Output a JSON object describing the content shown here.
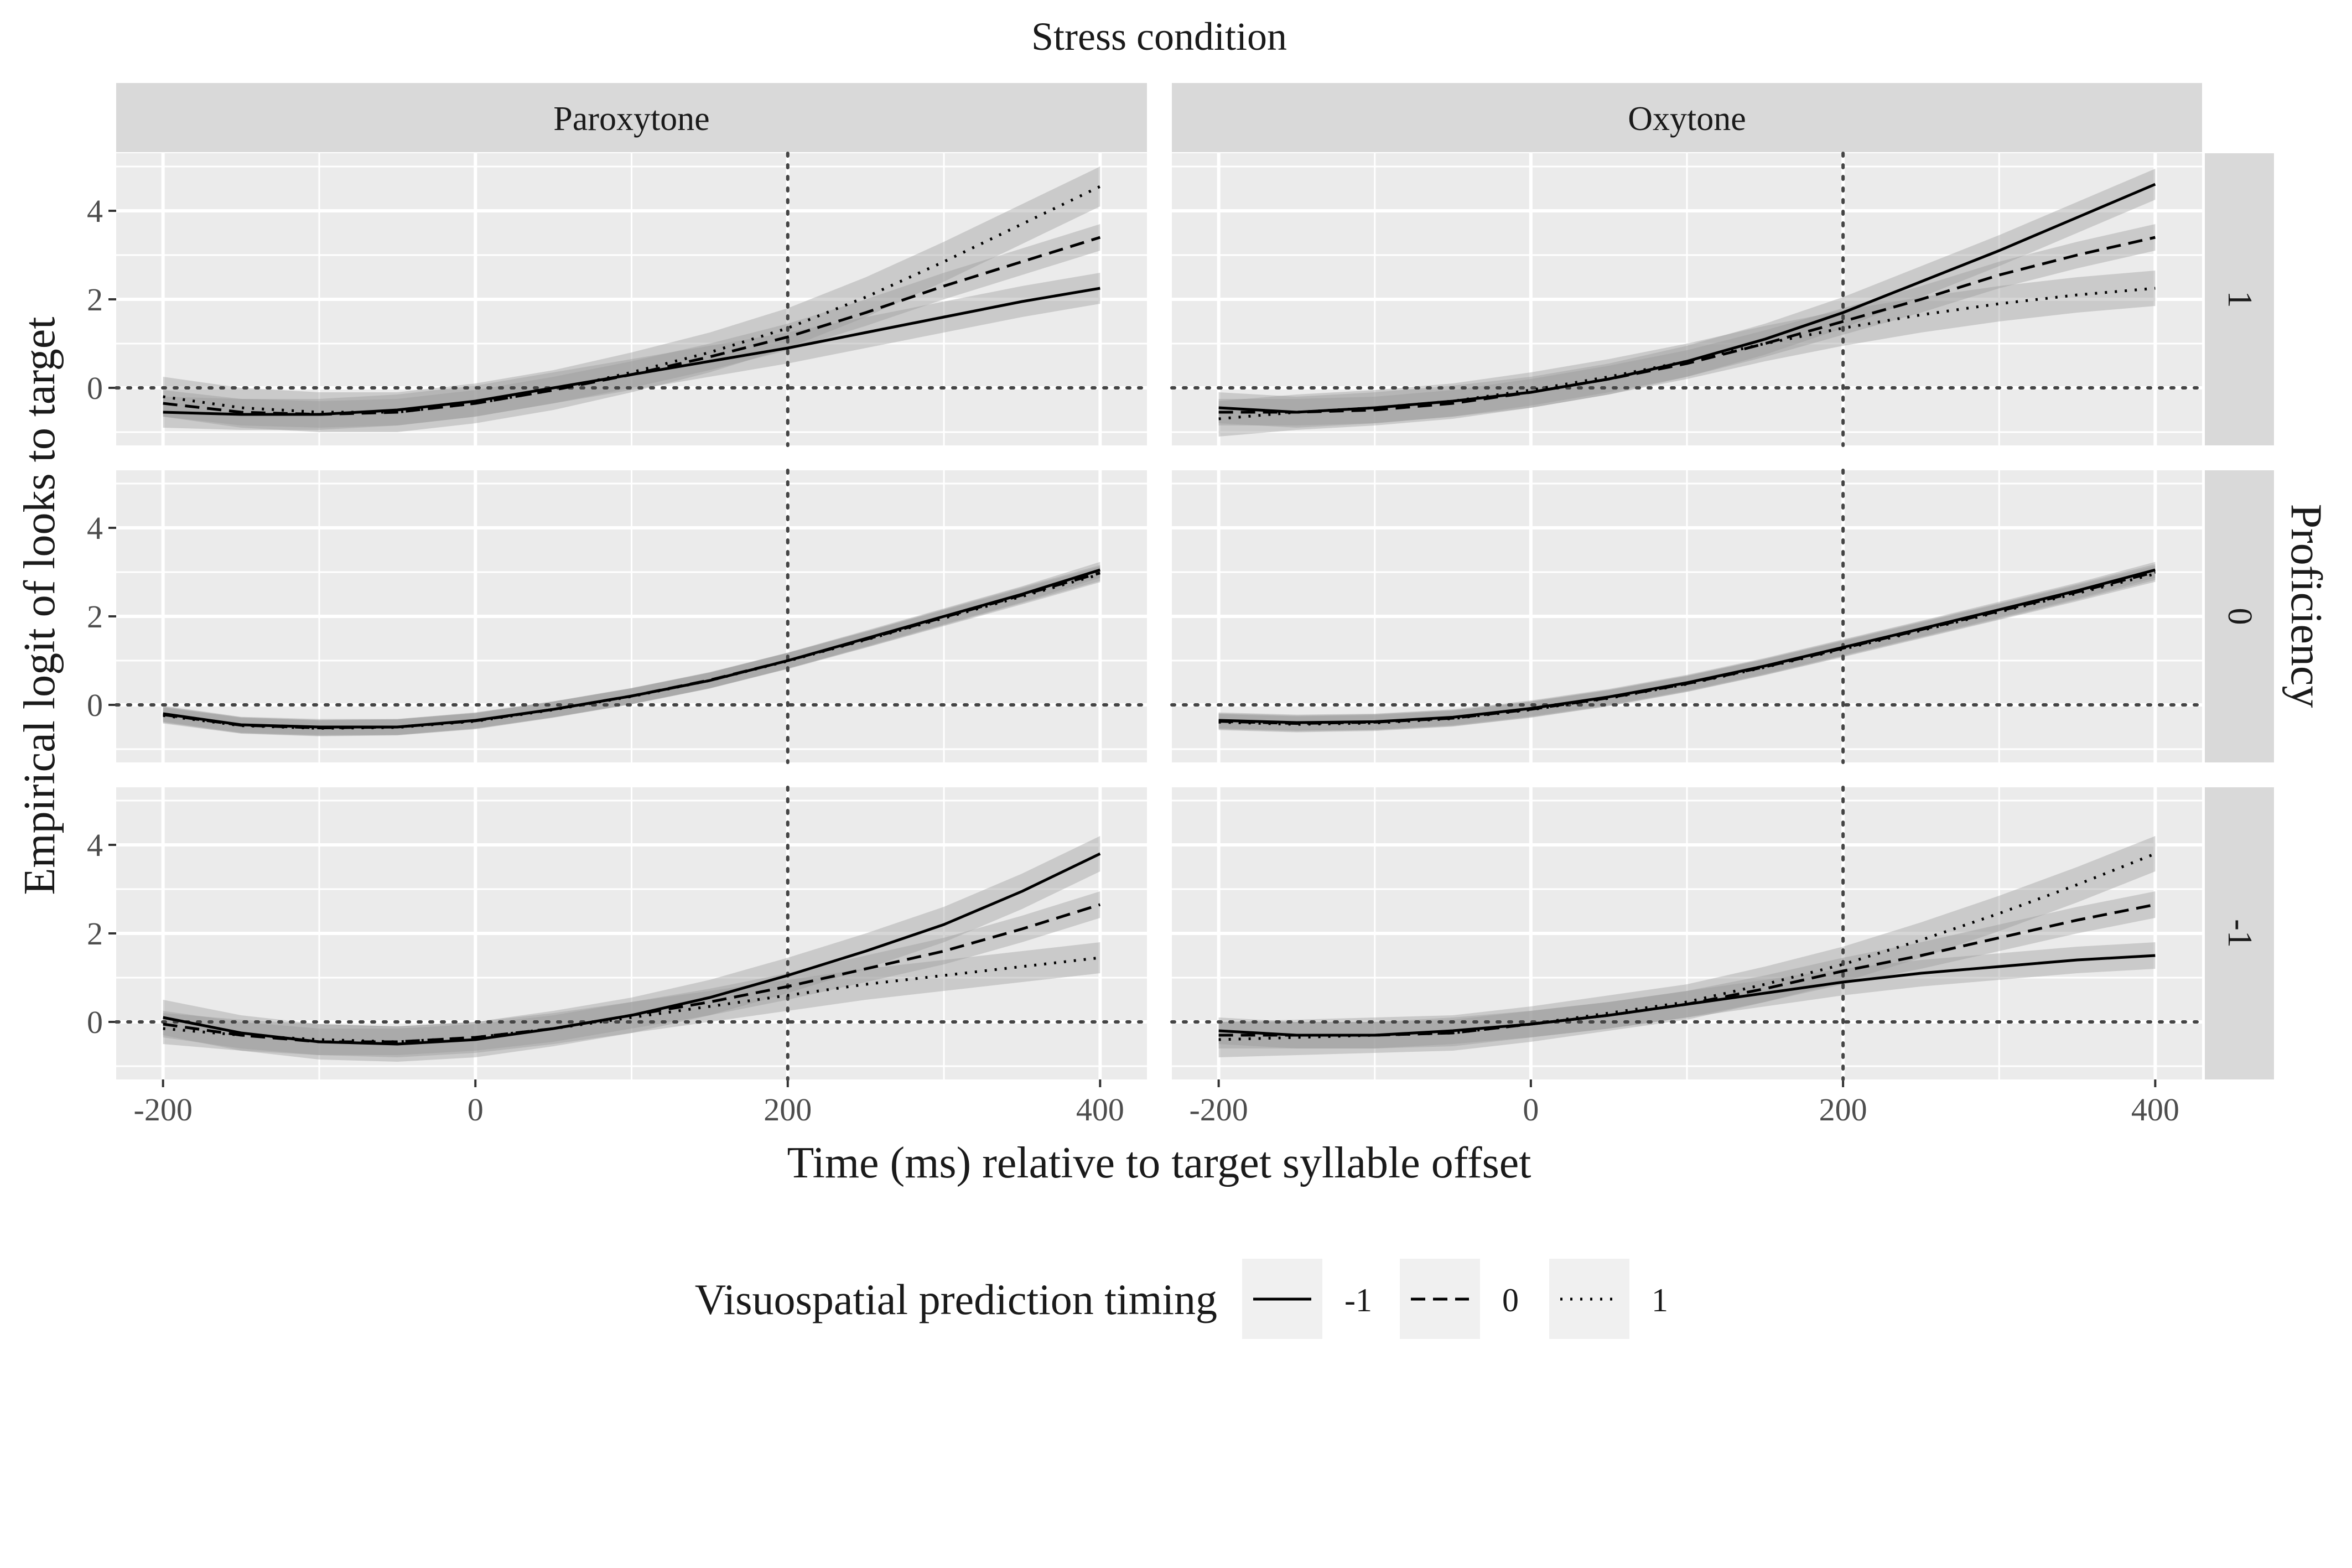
{
  "chart_data": {
    "type": "line",
    "title": "Stress condition",
    "xlabel": "Time (ms) relative to target syllable offset",
    "ylabel": "Empirical logit of looks to target",
    "facet_row_title": "Proficiency",
    "columns": [
      "Paroxytone",
      "Oxytone"
    ],
    "rows": [
      "1",
      "0",
      "-1"
    ],
    "xlim": [
      -230,
      430
    ],
    "ylim": [
      -1.3,
      5.3
    ],
    "x_ticks": [
      -200,
      0,
      200,
      400
    ],
    "x_tick_labels": [
      "-200",
      "0",
      "200",
      "400"
    ],
    "x_grid_minor": [
      -100,
      100,
      300
    ],
    "y_ticks": [
      0,
      2,
      4
    ],
    "y_tick_labels": [
      "0",
      "2",
      "4"
    ],
    "y_grid_minor": [
      -1,
      1,
      3,
      5
    ],
    "reference_lines": {
      "hline_y": 0,
      "vline_x": 200,
      "style": "dotted"
    },
    "x": [
      -200,
      -150,
      -100,
      -50,
      0,
      50,
      100,
      150,
      200,
      250,
      300,
      350,
      400
    ],
    "legend": {
      "title": "Visuospatial prediction timing",
      "position": "bottom",
      "entries": [
        {
          "label": "-1",
          "linetype": "solid"
        },
        {
          "label": "0",
          "linetype": "dashed"
        },
        {
          "label": "1",
          "linetype": "dotted"
        }
      ]
    },
    "panels": [
      {
        "column": "Paroxytone",
        "row": "1",
        "series": [
          {
            "name": "-1",
            "values": [
              -0.55,
              -0.6,
              -0.6,
              -0.5,
              -0.3,
              0.0,
              0.3,
              0.6,
              0.9,
              1.25,
              1.6,
              1.95,
              2.25
            ],
            "band": 0.35
          },
          {
            "name": "0",
            "values": [
              -0.35,
              -0.55,
              -0.6,
              -0.55,
              -0.35,
              -0.05,
              0.3,
              0.7,
              1.15,
              1.7,
              2.3,
              2.85,
              3.4
            ],
            "band": 0.3
          },
          {
            "name": "1",
            "values": [
              -0.2,
              -0.45,
              -0.55,
              -0.55,
              -0.35,
              -0.05,
              0.35,
              0.8,
              1.35,
              2.05,
              2.85,
              3.7,
              4.55
            ],
            "band": 0.45
          }
        ]
      },
      {
        "column": "Oxytone",
        "row": "1",
        "series": [
          {
            "name": "-1",
            "values": [
              -0.45,
              -0.55,
              -0.45,
              -0.3,
              -0.1,
              0.2,
              0.6,
              1.1,
              1.7,
              2.4,
              3.1,
              3.85,
              4.6
            ],
            "band": 0.35
          },
          {
            "name": "0",
            "values": [
              -0.55,
              -0.55,
              -0.5,
              -0.35,
              -0.1,
              0.2,
              0.55,
              1.0,
              1.5,
              2.0,
              2.55,
              3.0,
              3.4
            ],
            "band": 0.3
          },
          {
            "name": "1",
            "values": [
              -0.7,
              -0.55,
              -0.45,
              -0.3,
              -0.05,
              0.25,
              0.6,
              1.0,
              1.35,
              1.65,
              1.9,
              2.1,
              2.25
            ],
            "band": 0.4
          }
        ]
      },
      {
        "column": "Paroxytone",
        "row": "0",
        "series": [
          {
            "name": "-1",
            "values": [
              -0.2,
              -0.45,
              -0.5,
              -0.5,
              -0.35,
              -0.1,
              0.2,
              0.55,
              1.0,
              1.5,
              2.0,
              2.5,
              3.05
            ],
            "band": 0.18
          },
          {
            "name": "0",
            "values": [
              -0.22,
              -0.46,
              -0.52,
              -0.5,
              -0.36,
              -0.1,
              0.2,
              0.56,
              1.0,
              1.48,
              1.98,
              2.48,
              2.98
            ],
            "band": 0.18
          },
          {
            "name": "1",
            "values": [
              -0.24,
              -0.47,
              -0.53,
              -0.51,
              -0.37,
              -0.11,
              0.19,
              0.55,
              0.99,
              1.47,
              1.96,
              2.45,
              2.95
            ],
            "band": 0.18
          }
        ]
      },
      {
        "column": "Oxytone",
        "row": "0",
        "series": [
          {
            "name": "-1",
            "values": [
              -0.35,
              -0.4,
              -0.38,
              -0.28,
              -0.08,
              0.18,
              0.5,
              0.88,
              1.3,
              1.72,
              2.15,
              2.58,
              3.05
            ],
            "band": 0.18
          },
          {
            "name": "0",
            "values": [
              -0.37,
              -0.42,
              -0.39,
              -0.3,
              -0.1,
              0.16,
              0.48,
              0.86,
              1.28,
              1.7,
              2.12,
              2.55,
              3.0
            ],
            "band": 0.18
          },
          {
            "name": "1",
            "values": [
              -0.39,
              -0.44,
              -0.41,
              -0.31,
              -0.11,
              0.15,
              0.47,
              0.85,
              1.26,
              1.68,
              2.1,
              2.52,
              2.96
            ],
            "band": 0.18
          }
        ]
      },
      {
        "column": "Paroxytone",
        "row": "-1",
        "series": [
          {
            "name": "-1",
            "values": [
              0.1,
              -0.25,
              -0.45,
              -0.5,
              -0.4,
              -0.15,
              0.15,
              0.55,
              1.05,
              1.6,
              2.2,
              2.95,
              3.8
            ],
            "band": 0.4
          },
          {
            "name": "0",
            "values": [
              -0.05,
              -0.3,
              -0.45,
              -0.45,
              -0.35,
              -0.15,
              0.15,
              0.45,
              0.8,
              1.2,
              1.6,
              2.1,
              2.65
            ],
            "band": 0.3
          },
          {
            "name": "1",
            "values": [
              -0.15,
              -0.3,
              -0.4,
              -0.45,
              -0.35,
              -0.15,
              0.1,
              0.35,
              0.6,
              0.85,
              1.05,
              1.25,
              1.45
            ],
            "band": 0.35
          }
        ]
      },
      {
        "column": "Oxytone",
        "row": "-1",
        "series": [
          {
            "name": "-1",
            "values": [
              -0.2,
              -0.3,
              -0.3,
              -0.2,
              -0.05,
              0.15,
              0.4,
              0.65,
              0.9,
              1.1,
              1.25,
              1.4,
              1.5
            ],
            "band": 0.3
          },
          {
            "name": "0",
            "values": [
              -0.3,
              -0.3,
              -0.3,
              -0.25,
              -0.05,
              0.15,
              0.4,
              0.75,
              1.15,
              1.5,
              1.9,
              2.3,
              2.65
            ],
            "band": 0.3
          },
          {
            "name": "1",
            "values": [
              -0.4,
              -0.35,
              -0.3,
              -0.25,
              -0.05,
              0.2,
              0.45,
              0.85,
              1.3,
              1.85,
              2.45,
              3.1,
              3.8
            ],
            "band": 0.4
          }
        ]
      }
    ]
  }
}
